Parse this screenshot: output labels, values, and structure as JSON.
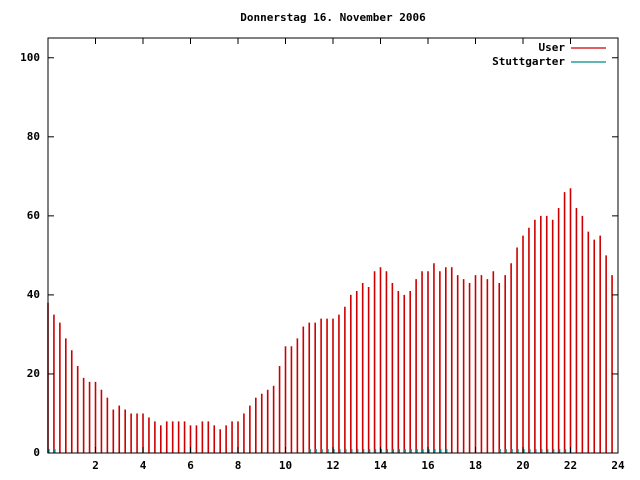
{
  "chart_data": {
    "type": "impulses",
    "title": "Donnerstag 16. November 2006",
    "x": [
      0,
      0.25,
      0.5,
      0.75,
      1,
      1.25,
      1.5,
      1.75,
      2,
      2.25,
      2.5,
      2.75,
      3,
      3.25,
      3.5,
      3.75,
      4,
      4.25,
      4.5,
      4.75,
      5,
      5.25,
      5.5,
      5.75,
      6,
      6.25,
      6.5,
      6.75,
      7,
      7.25,
      7.5,
      7.75,
      8,
      8.25,
      8.5,
      8.75,
      9,
      9.25,
      9.5,
      9.75,
      10,
      10.25,
      10.5,
      10.75,
      11,
      11.25,
      11.5,
      11.75,
      12,
      12.25,
      12.5,
      12.75,
      13,
      13.25,
      13.5,
      13.75,
      14,
      14.25,
      14.5,
      14.75,
      15,
      15.25,
      15.5,
      15.75,
      16,
      16.25,
      16.5,
      16.75,
      17,
      17.25,
      17.5,
      17.75,
      18,
      18.25,
      18.5,
      18.75,
      19,
      19.25,
      19.5,
      19.75,
      20,
      20.25,
      20.5,
      20.75,
      21,
      21.25,
      21.5,
      21.75,
      22,
      22.25,
      22.5,
      22.75,
      23,
      23.25,
      23.5,
      23.75
    ],
    "series": [
      {
        "name": "User",
        "color": "#cc0000",
        "values": [
          38,
          35,
          33,
          29,
          26,
          22,
          19,
          18,
          18,
          16,
          14,
          11,
          12,
          11,
          10,
          10,
          10,
          9,
          8,
          7,
          8,
          8,
          8,
          8,
          7,
          7,
          8,
          8,
          7,
          6,
          7,
          8,
          8,
          10,
          12,
          14,
          15,
          16,
          17,
          22,
          27,
          27,
          29,
          32,
          33,
          33,
          34,
          34,
          34,
          35,
          37,
          40,
          41,
          43,
          42,
          46,
          47,
          46,
          43,
          41,
          40,
          41,
          44,
          46,
          46,
          48,
          46,
          47,
          47,
          45,
          44,
          43,
          45,
          45,
          44,
          46,
          43,
          45,
          48,
          52,
          55,
          57,
          59,
          60,
          60,
          59,
          62,
          66,
          67,
          62,
          60,
          56,
          54,
          55,
          50,
          45
        ]
      },
      {
        "name": "Stuttgarter",
        "color": "#008b8b",
        "values": [
          1,
          1,
          0,
          0,
          0,
          0,
          0,
          0,
          0,
          0,
          0,
          0,
          0,
          0,
          0,
          0,
          0,
          0,
          0,
          0,
          0,
          0,
          0,
          0,
          0,
          0,
          0,
          0,
          0,
          0,
          0,
          0,
          0,
          0,
          0,
          0,
          0,
          0,
          0,
          0,
          0,
          0,
          0,
          0,
          1,
          1,
          1,
          1,
          1,
          1,
          1,
          1,
          1,
          1,
          1,
          1,
          1,
          1,
          1,
          1,
          1,
          1,
          1,
          1,
          1,
          1,
          1,
          1,
          0,
          0,
          0,
          0,
          0,
          0,
          0,
          0,
          1,
          1,
          1,
          1,
          1,
          1,
          1,
          1,
          1,
          1,
          1,
          1,
          0,
          0,
          0,
          0,
          0,
          0,
          0,
          0
        ]
      }
    ],
    "xlim": [
      0,
      24
    ],
    "xticks": [
      2,
      4,
      6,
      8,
      10,
      12,
      14,
      16,
      18,
      20,
      22,
      24
    ],
    "ylim": [
      0,
      105
    ],
    "yticks": [
      0,
      20,
      40,
      60,
      80,
      100
    ]
  }
}
